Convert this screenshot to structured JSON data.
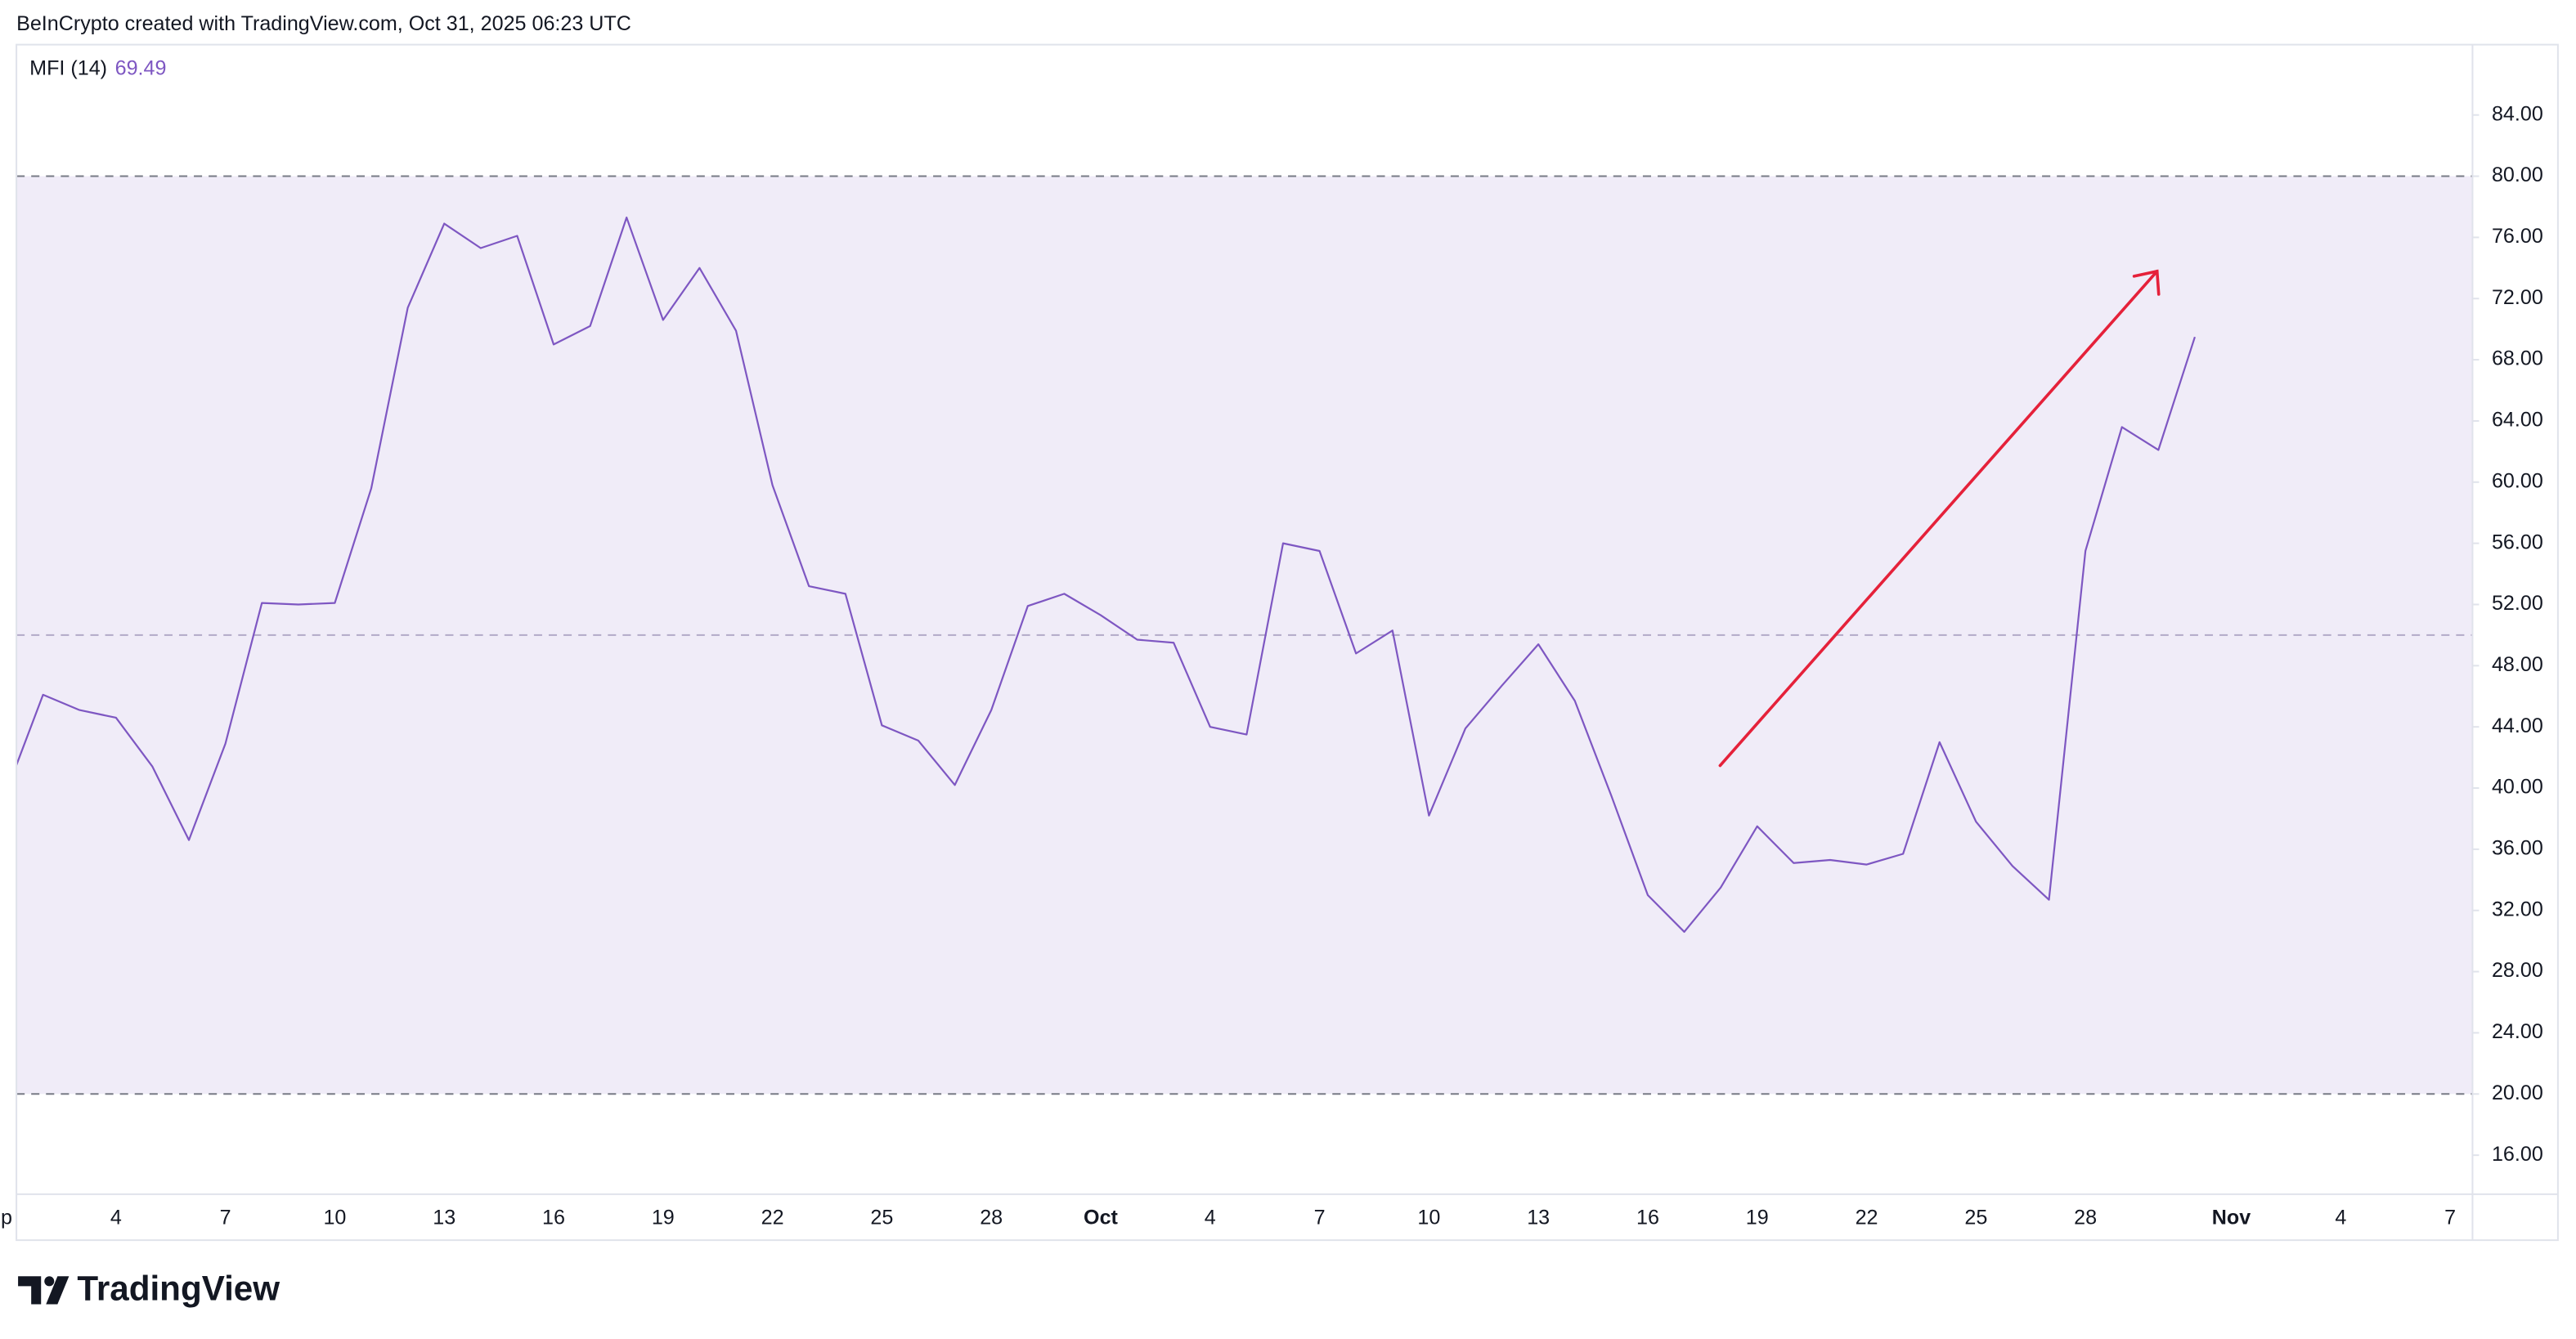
{
  "chart_data": {
    "type": "line",
    "attribution": "BeInCrypto created with TradingView.com, Oct 31, 2025 06:23 UTC",
    "watermark": "TradingView",
    "categories": [
      "p",
      null,
      null,
      "4",
      null,
      null,
      "7",
      null,
      null,
      "10",
      null,
      null,
      "13",
      null,
      null,
      "16",
      null,
      null,
      "19",
      null,
      null,
      "22",
      null,
      null,
      "25",
      null,
      null,
      "28",
      null,
      null,
      "Oct",
      null,
      null,
      "4",
      null,
      null,
      "7",
      null,
      null,
      "10",
      null,
      null,
      "13",
      null,
      null,
      "16",
      null,
      null,
      "19",
      null,
      null,
      "22",
      null,
      null,
      "25",
      null,
      null,
      "28",
      null,
      null,
      null,
      "Nov",
      null,
      null,
      "4",
      null,
      null,
      "7"
    ],
    "series": [
      {
        "name": "MFI (14)",
        "color": "#7e57c2",
        "values": [
          39.8,
          46.1,
          45.1,
          44.6,
          41.4,
          36.6,
          42.9,
          52.1,
          52.0,
          52.1,
          59.6,
          71.4,
          76.9,
          75.3,
          76.1,
          69.0,
          70.2,
          77.3,
          70.6,
          74.0,
          69.9,
          59.8,
          53.2,
          52.7,
          44.1,
          43.1,
          40.2,
          45.1,
          51.9,
          52.7,
          51.3,
          49.7,
          49.5,
          44.0,
          43.5,
          56.0,
          55.5,
          48.8,
          50.3,
          38.2,
          43.9,
          46.7,
          49.4,
          45.7,
          39.5,
          33.0,
          30.6,
          33.5,
          37.5,
          35.1,
          35.3,
          35.0,
          35.7,
          43.0,
          37.8,
          34.9,
          32.7,
          55.5,
          63.6,
          62.1,
          69.49,
          null,
          null,
          null,
          null,
          null,
          null,
          null
        ]
      }
    ],
    "ylim": [
      13.45,
      88.6
    ],
    "yticks": [
      {
        "value": 16,
        "label": "16.00"
      },
      {
        "value": 20,
        "label": "20.00"
      },
      {
        "value": 24,
        "label": "24.00"
      },
      {
        "value": 28,
        "label": "28.00"
      },
      {
        "value": 32,
        "label": "32.00"
      },
      {
        "value": 36,
        "label": "36.00"
      },
      {
        "value": 40,
        "label": "40.00"
      },
      {
        "value": 44,
        "label": "44.00"
      },
      {
        "value": 48,
        "label": "48.00"
      },
      {
        "value": 52,
        "label": "52.00"
      },
      {
        "value": 56,
        "label": "56.00"
      },
      {
        "value": 60,
        "label": "60.00"
      },
      {
        "value": 64,
        "label": "64.00"
      },
      {
        "value": 68,
        "label": "68.00"
      },
      {
        "value": 72,
        "label": "72.00"
      },
      {
        "value": 76,
        "label": "76.00"
      },
      {
        "value": 80,
        "label": "80.00"
      },
      {
        "value": 84,
        "label": "84.00"
      }
    ],
    "band": [
      20,
      80
    ],
    "band_color": "#f0ecf8",
    "midline": 50,
    "grid": false
  }
}
